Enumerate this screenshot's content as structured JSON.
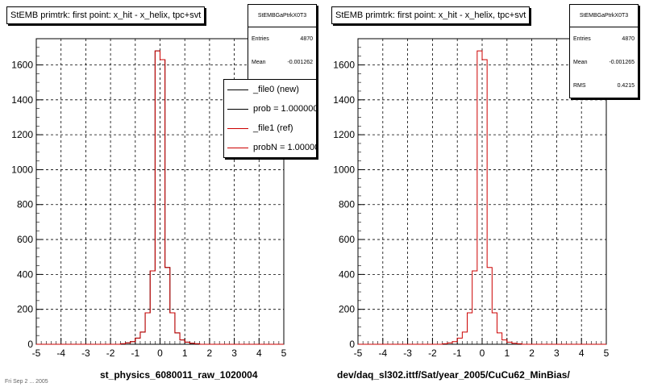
{
  "panels": [
    {
      "title": "StEMB primtrk: first point: x_hit - x_helix, tpc+svt",
      "xlabel": "st_physics_6080011_raw_1020004",
      "stats": {
        "name": "StEMBGaPtrkX0T3",
        "rows": [
          {
            "label": "Entries",
            "value": "4870"
          },
          {
            "label": "Mean",
            "value": "-0.001262"
          }
        ]
      },
      "legend": [
        {
          "label": "_file0 (new)",
          "color": "#000000"
        },
        {
          "label": "prob = 1.000000",
          "color": "#000000"
        },
        {
          "label": "_file1 (ref)",
          "color": "#cc0000"
        },
        {
          "label": "probN = 1.000000",
          "color": "#cc0000"
        }
      ]
    },
    {
      "title": "StEMB primtrk: first point: x_hit - x_helix, tpc+svt",
      "xlabel": "dev/daq_sl302.ittf/Sat/year_2005/CuCu62_MinBias/",
      "stats": {
        "name": "StEMBGaPtrkX0T3",
        "rows": [
          {
            "label": "Entries",
            "value": "4870"
          },
          {
            "label": "Mean",
            "value": "-0.001265"
          },
          {
            "label": "RMS",
            "value": "0.4215"
          }
        ]
      },
      "legend": []
    }
  ],
  "footer_text": "Fri Sep 2 ... 2005",
  "chart_data": [
    {
      "type": "histogram",
      "title": "StEMB primtrk: first point: x_hit - x_helix, tpc+svt",
      "xlabel": "st_physics_6080011_raw_1020004",
      "xlim": [
        -5,
        5
      ],
      "ylim": [
        0,
        1750
      ],
      "xticks": [
        -5,
        -4,
        -3,
        -2,
        -1,
        0,
        1,
        2,
        3,
        4,
        5
      ],
      "yticks": [
        0,
        200,
        400,
        600,
        800,
        1000,
        1200,
        1400,
        1600
      ],
      "grid": true,
      "bin_width": 0.2,
      "bin_centers": [
        -1.5,
        -1.3,
        -1.1,
        -0.9,
        -0.7,
        -0.5,
        -0.3,
        -0.1,
        0.1,
        0.3,
        0.5,
        0.7,
        0.9,
        1.1,
        1.3,
        1.5
      ],
      "series": [
        {
          "name": "_file0 (new)",
          "color": "#000000",
          "values": [
            3,
            8,
            15,
            35,
            70,
            180,
            420,
            1680,
            1630,
            440,
            180,
            65,
            25,
            12,
            6,
            3
          ]
        },
        {
          "name": "_file1 (ref)",
          "color": "#cc0000",
          "values": [
            3,
            8,
            15,
            35,
            70,
            180,
            420,
            1680,
            1630,
            440,
            180,
            65,
            25,
            12,
            6,
            3
          ]
        }
      ]
    },
    {
      "type": "histogram",
      "title": "StEMB primtrk: first point: x_hit - x_helix, tpc+svt",
      "xlabel": "dev/daq_sl302.ittf/Sat/year_2005/CuCu62_MinBias/",
      "xlim": [
        -5,
        5
      ],
      "ylim": [
        0,
        1750
      ],
      "xticks": [
        -5,
        -4,
        -3,
        -2,
        -1,
        0,
        1,
        2,
        3,
        4,
        5
      ],
      "yticks": [
        0,
        200,
        400,
        600,
        800,
        1000,
        1200,
        1400,
        1600
      ],
      "grid": true,
      "bin_width": 0.2,
      "bin_centers": [
        -1.5,
        -1.3,
        -1.1,
        -0.9,
        -0.7,
        -0.5,
        -0.3,
        -0.1,
        0.1,
        0.3,
        0.5,
        0.7,
        0.9,
        1.1,
        1.3,
        1.5
      ],
      "series": [
        {
          "name": "",
          "color": "#cc0000",
          "values": [
            3,
            8,
            15,
            35,
            70,
            180,
            420,
            1680,
            1630,
            440,
            180,
            65,
            25,
            12,
            6,
            3
          ]
        }
      ]
    }
  ]
}
